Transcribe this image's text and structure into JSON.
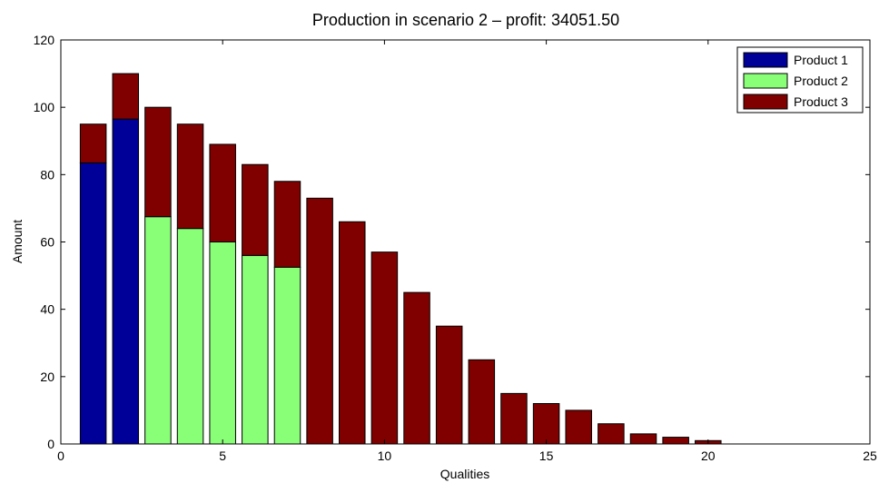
{
  "chart_data": {
    "type": "bar",
    "stacked": true,
    "title": "Production in scenario 2 – profit:  34051.50",
    "xlabel": "Qualities",
    "ylabel": "Amount",
    "xlim": [
      0,
      25
    ],
    "ylim": [
      0,
      120
    ],
    "xticks": [
      0,
      5,
      10,
      15,
      20,
      25
    ],
    "yticks": [
      0,
      20,
      40,
      60,
      80,
      100,
      120
    ],
    "grid": false,
    "legend_position": "top-right",
    "x": [
      1,
      2,
      3,
      4,
      5,
      6,
      7,
      8,
      9,
      10,
      11,
      12,
      13,
      14,
      15,
      16,
      17,
      18,
      19,
      20
    ],
    "series": [
      {
        "name": "Product 1",
        "color": "#000099",
        "values": [
          83.5,
          96.5,
          0,
          0,
          0,
          0,
          0,
          0,
          0,
          0,
          0,
          0,
          0,
          0,
          0,
          0,
          0,
          0,
          0,
          0
        ]
      },
      {
        "name": "Product 2",
        "color": "#88ff77",
        "values": [
          0,
          0,
          67.5,
          64,
          60,
          56,
          52.5,
          0,
          0,
          0,
          0,
          0,
          0,
          0,
          0,
          0,
          0,
          0,
          0,
          0
        ]
      },
      {
        "name": "Product 3",
        "color": "#800000",
        "values": [
          11.5,
          13.5,
          32.5,
          31,
          29,
          27,
          25.5,
          73,
          66,
          57,
          45,
          35,
          25,
          15,
          12,
          10,
          6,
          3,
          2,
          1
        ]
      }
    ]
  }
}
